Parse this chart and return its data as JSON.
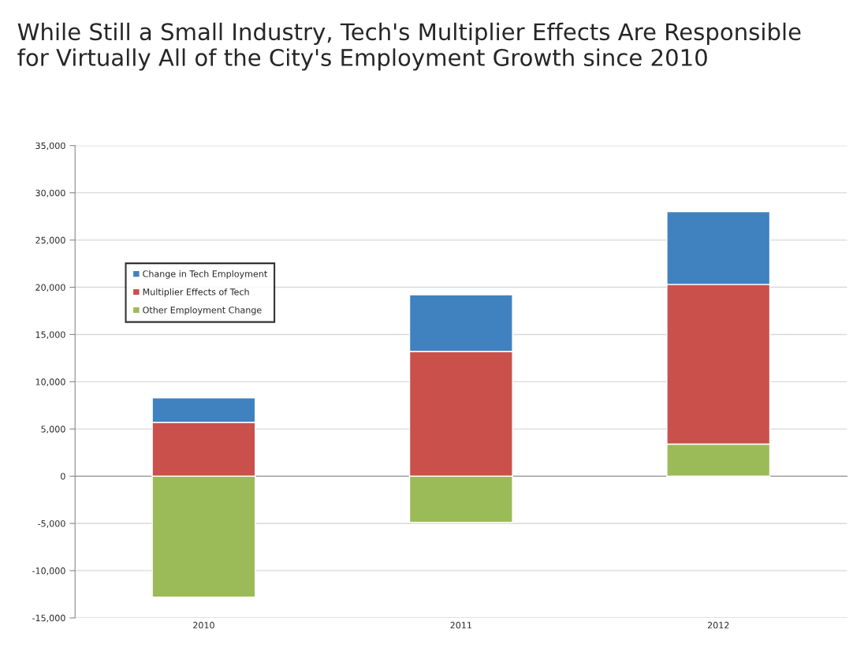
{
  "chart_data": {
    "type": "bar",
    "title": "While Still a Small Industry, Tech's Multiplier Effects Are Responsible\nfor Virtually All of the City's Employment Growth since 2010",
    "categories": [
      "2010",
      "2011",
      "2012"
    ],
    "stacked": true,
    "series": [
      {
        "name": "Other Employment Change",
        "color": "#9bbb59",
        "values": [
          -12800,
          -4900,
          3400
        ]
      },
      {
        "name": "Multiplier Effects of Tech",
        "color": "#c9504b",
        "values": [
          5700,
          13200,
          16900
        ]
      },
      {
        "name": "Change in Tech Employment",
        "color": "#4081c0",
        "values": [
          2600,
          6000,
          7700
        ]
      }
    ],
    "ylim": [
      -15000,
      35000
    ],
    "yticks": [
      {
        "value": -15000,
        "label": "-15,000"
      },
      {
        "value": -10000,
        "label": "-10,000"
      },
      {
        "value": -5000,
        "label": "-5,000"
      },
      0,
      {
        "value": 5000,
        "label": "5,000"
      },
      {
        "value": 10000,
        "label": "10,000"
      },
      {
        "value": 15000,
        "label": "15,000"
      },
      {
        "value": 20000,
        "label": "20,000"
      },
      {
        "value": 25000,
        "label": "25,000"
      },
      {
        "value": 30000,
        "label": "30,000"
      },
      {
        "value": 35000,
        "label": "35,000"
      }
    ],
    "grid": "y",
    "legend": "top left"
  }
}
